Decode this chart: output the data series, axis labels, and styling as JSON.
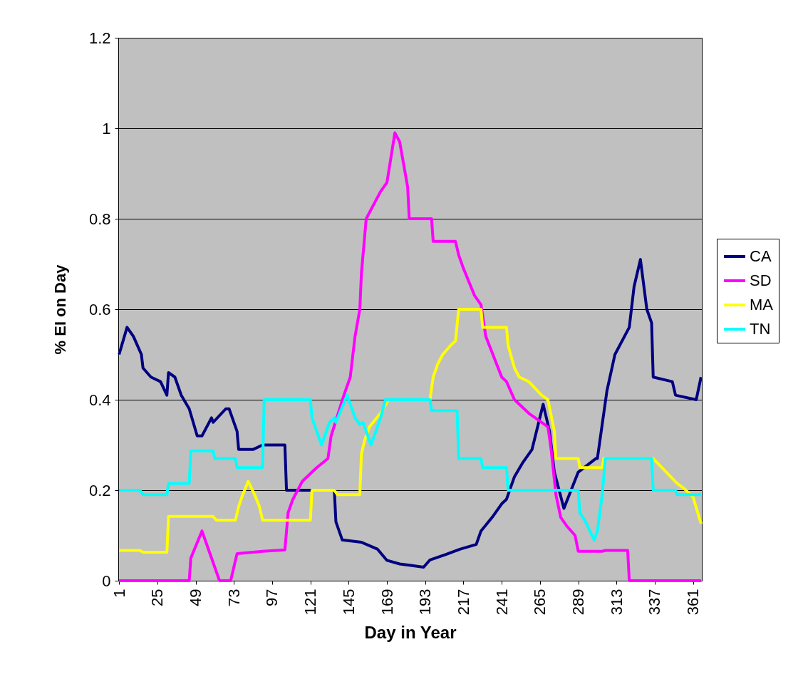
{
  "chart_data": {
    "type": "line",
    "xlabel": "Day in Year",
    "ylabel": "% EI on Day",
    "xlim": [
      0.5,
      366.5
    ],
    "xticks": [
      1,
      25,
      49,
      73,
      97,
      121,
      145,
      169,
      193,
      217,
      241,
      265,
      289,
      313,
      337,
      361
    ],
    "ylim": [
      0,
      1.2
    ],
    "yticks": [
      0,
      0.2,
      0.4,
      0.6,
      0.8,
      1,
      1.2
    ],
    "grid": "y",
    "legend": "right",
    "marker": "none",
    "line_style": "solid",
    "series": [
      {
        "name": "CA",
        "color": "#000080",
        "x": [
          1,
          6,
          10,
          15,
          16,
          21,
          27,
          31,
          32,
          36,
          40,
          45,
          50,
          53,
          59,
          60,
          68,
          70,
          75,
          76,
          77,
          85,
          91,
          98,
          105,
          106,
          120,
          136,
          137,
          141,
          153,
          163,
          169,
          177,
          184,
          192,
          196,
          206,
          215,
          225,
          228,
          235,
          241,
          244,
          249,
          254,
          260,
          267,
          271,
          274,
          280,
          289,
          300,
          301,
          307,
          312,
          321,
          324,
          328,
          332,
          335,
          336,
          348,
          350,
          363,
          366
        ],
        "values": [
          0.5,
          0.56,
          0.54,
          0.5,
          0.47,
          0.45,
          0.44,
          0.41,
          0.46,
          0.45,
          0.41,
          0.38,
          0.32,
          0.32,
          0.36,
          0.35,
          0.38,
          0.38,
          0.33,
          0.29,
          0.29,
          0.29,
          0.3,
          0.3,
          0.3,
          0.2,
          0.2,
          0.2,
          0.13,
          0.09,
          0.085,
          0.07,
          0.045,
          0.037,
          0.034,
          0.03,
          0.046,
          0.058,
          0.07,
          0.08,
          0.11,
          0.14,
          0.17,
          0.18,
          0.23,
          0.26,
          0.29,
          0.39,
          0.33,
          0.24,
          0.16,
          0.24,
          0.27,
          0.27,
          0.42,
          0.5,
          0.56,
          0.65,
          0.71,
          0.6,
          0.57,
          0.45,
          0.44,
          0.41,
          0.4,
          0.45
        ]
      },
      {
        "name": "SD",
        "color": "#ff00ff",
        "x": [
          1,
          45,
          46,
          53,
          59,
          64,
          71,
          75,
          91,
          105,
          107,
          110,
          116,
          125,
          132,
          134,
          142,
          146,
          149,
          152,
          153,
          156,
          159,
          165,
          169,
          174,
          177,
          182,
          183,
          197,
          198,
          212,
          214,
          217,
          224,
          228,
          231,
          241,
          244,
          249,
          258,
          270,
          272,
          275,
          278,
          282,
          287,
          289,
          304,
          306,
          320,
          321,
          366
        ],
        "values": [
          0,
          0,
          0.05,
          0.11,
          0.05,
          0,
          0,
          0.06,
          0.065,
          0.068,
          0.15,
          0.18,
          0.22,
          0.25,
          0.27,
          0.32,
          0.41,
          0.45,
          0.54,
          0.6,
          0.68,
          0.8,
          0.82,
          0.86,
          0.88,
          0.99,
          0.97,
          0.87,
          0.8,
          0.8,
          0.75,
          0.75,
          0.72,
          0.69,
          0.63,
          0.61,
          0.54,
          0.45,
          0.44,
          0.4,
          0.37,
          0.34,
          0.29,
          0.19,
          0.14,
          0.12,
          0.1,
          0.065,
          0.065,
          0.067,
          0.067,
          0,
          0
        ]
      },
      {
        "name": "MA",
        "color": "#ffff00",
        "x": [
          1,
          14,
          16,
          31,
          32,
          60,
          62,
          74,
          76,
          78,
          82,
          86,
          89,
          91,
          121,
          122,
          136,
          138,
          152,
          153,
          155,
          158,
          165,
          170,
          196,
          198,
          201,
          204,
          209,
          212,
          214,
          228,
          229,
          244,
          245,
          249,
          252,
          258,
          266,
          270,
          274,
          275,
          289,
          290,
          304,
          305,
          336,
          351,
          355,
          361,
          366
        ],
        "values": [
          0.067,
          0.067,
          0.063,
          0.063,
          0.142,
          0.142,
          0.134,
          0.134,
          0.164,
          0.185,
          0.22,
          0.19,
          0.164,
          0.134,
          0.134,
          0.2,
          0.2,
          0.19,
          0.19,
          0.28,
          0.31,
          0.34,
          0.37,
          0.4,
          0.4,
          0.45,
          0.48,
          0.5,
          0.52,
          0.53,
          0.6,
          0.6,
          0.56,
          0.56,
          0.52,
          0.47,
          0.45,
          0.44,
          0.41,
          0.4,
          0.33,
          0.27,
          0.27,
          0.25,
          0.25,
          0.27,
          0.27,
          0.215,
          0.205,
          0.185,
          0.126
        ]
      },
      {
        "name": "TN",
        "color": "#00ffff",
        "x": [
          1,
          14,
          16,
          31,
          32,
          45,
          46,
          60,
          61,
          74,
          75,
          91,
          92,
          121,
          122,
          125,
          128,
          133,
          136,
          137,
          144,
          149,
          152,
          154,
          159,
          165,
          168,
          196,
          197,
          213,
          214,
          228,
          229,
          244,
          245,
          289,
          290,
          293,
          299,
          301,
          304,
          306,
          335,
          336,
          350,
          351,
          366
        ],
        "values": [
          0.2,
          0.2,
          0.19,
          0.19,
          0.215,
          0.215,
          0.287,
          0.287,
          0.27,
          0.27,
          0.25,
          0.25,
          0.4,
          0.4,
          0.36,
          0.33,
          0.3,
          0.35,
          0.36,
          0.35,
          0.41,
          0.36,
          0.345,
          0.35,
          0.3,
          0.36,
          0.4,
          0.4,
          0.376,
          0.376,
          0.27,
          0.27,
          0.25,
          0.25,
          0.2,
          0.2,
          0.15,
          0.134,
          0.09,
          0.11,
          0.19,
          0.27,
          0.27,
          0.2,
          0.2,
          0.19,
          0.19
        ]
      }
    ]
  }
}
